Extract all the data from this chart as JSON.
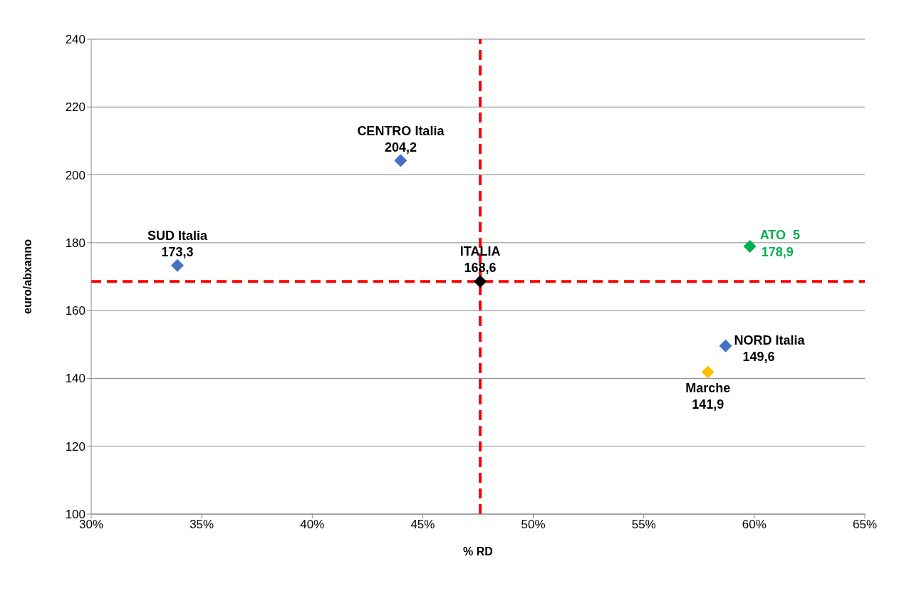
{
  "chart_data": {
    "type": "scatter",
    "xlabel": "% RD",
    "ylabel": "euro/abxanno",
    "xlim": [
      30,
      65
    ],
    "xticks": [
      {
        "value": 30,
        "label": "30%"
      },
      {
        "value": 35,
        "label": "35%"
      },
      {
        "value": 40,
        "label": "40%"
      },
      {
        "value": 45,
        "label": "45%"
      },
      {
        "value": 50,
        "label": "50%"
      },
      {
        "value": 55,
        "label": "55%"
      },
      {
        "value": 60,
        "label": "60%"
      },
      {
        "value": 65,
        "label": "65%"
      }
    ],
    "ylim": [
      100,
      240
    ],
    "yticks": [
      100,
      120,
      140,
      160,
      180,
      200,
      220,
      240
    ],
    "grid": "y",
    "legend": false,
    "marker": "diamond",
    "series": [
      {
        "x": [
          33.9,
          44.0,
          47.6,
          59.8,
          58.7,
          57.9
        ],
        "values": [
          173.3,
          204.2,
          168.6,
          178.9,
          149.6,
          141.9
        ],
        "colors": [
          "#4472c4",
          "#4472c4",
          "#000000",
          "#00b050",
          "#4472c4",
          "#ffc000"
        ],
        "value_labels": [
          "173,3",
          "204,2",
          "168,6",
          "178,9",
          "149,6",
          "141,9"
        ]
      }
    ],
    "annotations": [
      {
        "text": "SUD Italia",
        "x": 33.9,
        "y": 173.3
      },
      {
        "text": "CENTRO Italia",
        "x": 44.0,
        "y": 204.2
      },
      {
        "text": "ITALIA",
        "x": 47.6,
        "y": 168.6
      },
      {
        "text": "ATO  5",
        "x": 59.8,
        "y": 178.9
      },
      {
        "text": "NORD Italia",
        "x": 58.7,
        "y": 149.6
      },
      {
        "text": "Marche",
        "x": 57.9,
        "y": 141.9
      }
    ],
    "ref_lines": [
      {
        "axis": "x",
        "value": 47.6,
        "color": "#ff0000",
        "line_style": "dashed"
      },
      {
        "axis": "y",
        "value": 168.6,
        "color": "#ff0000",
        "line_style": "dashed"
      }
    ]
  }
}
